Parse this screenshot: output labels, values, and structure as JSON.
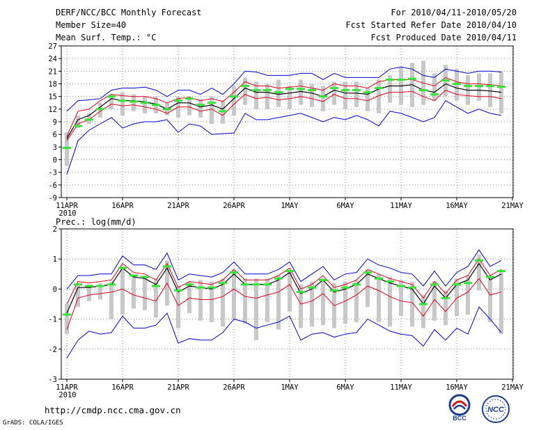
{
  "header": {
    "title": "DERF/NCC/BCC Monthly Forecast",
    "member_size": "Member Size=40",
    "variable": "Mean Surf. Temp.: °C",
    "period": "For 2010/04/11-2010/05/20",
    "started": "Fcst Started Refer Date 2010/04/10",
    "produced": "Fcst Produced Date 2010/04/11"
  },
  "footer": {
    "url": "http://cmdp.ncc.cma.gov.cn",
    "grads": "GrADS: COLA/IGES",
    "logo_bcc": "BCC",
    "logo_ncc": "NCC"
  },
  "colors": {
    "grid": "#8a8a8a",
    "box": "#c8c8c8",
    "mean": "#000000",
    "spread": "#e0001a",
    "range": "#0000d0",
    "obs": "#33e633"
  },
  "chart_data": [
    {
      "type": "line",
      "title": "Mean Surf. Temp.: °C",
      "xlabel": "",
      "ylabel": "°C",
      "ylim": [
        -9,
        27
      ],
      "yticks": [
        -9,
        -6,
        -3,
        0,
        3,
        6,
        9,
        12,
        15,
        18,
        21,
        24,
        27
      ],
      "xlim": [
        0,
        40
      ],
      "xticks": [
        {
          "day": 0,
          "label": "11APR"
        },
        {
          "day": 5,
          "label": "16APR"
        },
        {
          "day": 10,
          "label": "21APR"
        },
        {
          "day": 15,
          "label": "26APR"
        },
        {
          "day": 20,
          "label": "1MAY"
        },
        {
          "day": 25,
          "label": "6MAY"
        },
        {
          "day": 30,
          "label": "11MAY"
        },
        {
          "day": 35,
          "label": "16MAY"
        },
        {
          "day": 40,
          "label": "21MAY"
        }
      ],
      "year_label": "2010",
      "x": [
        0,
        1,
        2,
        3,
        4,
        5,
        6,
        7,
        8,
        9,
        10,
        11,
        12,
        13,
        14,
        15,
        16,
        17,
        18,
        19,
        20,
        21,
        22,
        23,
        24,
        25,
        26,
        27,
        28,
        29,
        30,
        31,
        32,
        33,
        34,
        35,
        36,
        37,
        38,
        39
      ],
      "series": [
        {
          "name": "ensemble mean",
          "values": [
            5.0,
            9.5,
            10.5,
            12.5,
            14.5,
            14.0,
            14.0,
            13.7,
            13.2,
            12.0,
            13.5,
            13.5,
            12.5,
            13.0,
            12.0,
            14.5,
            17.0,
            16.0,
            16.0,
            15.5,
            15.8,
            16.2,
            15.8,
            15.0,
            16.5,
            15.8,
            15.8,
            15.5,
            16.8,
            17.5,
            17.5,
            17.8,
            16.5,
            16.0,
            18.0,
            17.0,
            16.5,
            16.5,
            16.3,
            16.0
          ]
        },
        {
          "name": "mean plus spread",
          "values": [
            5.5,
            11.5,
            12.0,
            14.0,
            15.5,
            15.2,
            15.0,
            15.0,
            14.5,
            13.5,
            14.5,
            14.8,
            14.0,
            14.5,
            13.8,
            16.0,
            18.5,
            17.5,
            17.5,
            17.0,
            17.2,
            17.5,
            17.0,
            16.5,
            18.0,
            17.5,
            17.5,
            17.0,
            18.5,
            19.0,
            19.0,
            19.0,
            18.2,
            17.5,
            19.5,
            18.5,
            18.0,
            18.0,
            17.8,
            17.5
          ]
        },
        {
          "name": "mean minus spread",
          "values": [
            4.5,
            8.5,
            9.5,
            11.5,
            13.2,
            12.8,
            13.0,
            12.5,
            12.0,
            11.0,
            12.5,
            12.5,
            11.5,
            12.0,
            10.5,
            13.2,
            15.5,
            14.5,
            14.8,
            14.2,
            14.5,
            15.0,
            14.5,
            13.8,
            15.5,
            14.5,
            14.5,
            14.0,
            15.2,
            16.0,
            16.0,
            16.2,
            15.0,
            14.0,
            16.5,
            15.5,
            15.2,
            15.0,
            15.0,
            14.5
          ]
        },
        {
          "name": "ensemble max",
          "values": [
            11.5,
            14.0,
            14.2,
            14.5,
            16.5,
            17.0,
            17.0,
            17.2,
            16.5,
            15.0,
            16.5,
            16.5,
            15.5,
            17.0,
            15.5,
            18.0,
            21.0,
            20.8,
            20.0,
            20.0,
            20.0,
            20.5,
            20.5,
            19.0,
            20.5,
            19.5,
            19.5,
            19.5,
            19.5,
            21.5,
            22.0,
            21.5,
            20.0,
            19.5,
            21.5,
            21.0,
            20.5,
            21.0,
            21.0,
            20.8
          ]
        },
        {
          "name": "ensemble min",
          "values": [
            -3.5,
            4.5,
            7.0,
            8.5,
            10.0,
            7.5,
            8.5,
            9.0,
            9.0,
            9.5,
            6.5,
            8.5,
            8.0,
            6.0,
            6.2,
            6.3,
            11.0,
            9.5,
            9.5,
            10.0,
            10.5,
            11.0,
            10.0,
            9.0,
            10.0,
            9.5,
            10.5,
            9.5,
            8.0,
            11.5,
            11.0,
            10.0,
            9.0,
            10.0,
            14.0,
            12.5,
            11.0,
            12.0,
            11.0,
            10.5
          ]
        },
        {
          "name": "box top",
          "values": [
            6.5,
            10.5,
            11.0,
            13.5,
            15.5,
            16.0,
            15.5,
            15.0,
            15.0,
            13.5,
            15.0,
            15.0,
            14.5,
            15.0,
            14.0,
            17.5,
            19.5,
            18.5,
            18.0,
            19.0,
            17.5,
            19.0,
            18.0,
            17.5,
            18.5,
            18.5,
            18.5,
            17.0,
            19.0,
            20.0,
            22.0,
            23.0,
            23.5,
            20.5,
            22.5,
            21.5,
            20.0,
            20.5,
            20.5,
            21.0
          ]
        },
        {
          "name": "box bottom",
          "values": [
            -1.5,
            7.5,
            8.5,
            10.0,
            12.0,
            10.5,
            11.5,
            11.0,
            11.0,
            10.5,
            10.0,
            10.5,
            10.0,
            8.5,
            8.5,
            10.5,
            13.0,
            12.0,
            12.0,
            12.5,
            12.0,
            13.0,
            12.5,
            11.5,
            13.0,
            12.0,
            12.5,
            11.5,
            11.0,
            13.5,
            13.0,
            12.5,
            13.0,
            14.0,
            15.0,
            14.0,
            13.0,
            14.0,
            12.5,
            11.0
          ]
        },
        {
          "name": "observation (green markers)",
          "values": [
            2.8,
            8.0,
            9.5,
            12.0,
            15.0,
            14.0,
            13.8,
            13.5,
            13.0,
            12.0,
            14.0,
            14.5,
            13.0,
            13.5,
            11.5,
            15.0,
            17.5,
            16.5,
            16.5,
            16.0,
            16.8,
            16.8,
            16.5,
            15.0,
            17.0,
            16.5,
            16.5,
            16.0,
            17.0,
            19.0,
            19.0,
            19.2,
            16.5,
            15.5,
            18.8,
            18.0,
            17.5,
            17.5,
            17.5,
            17.3
          ]
        }
      ]
    },
    {
      "type": "line",
      "title": "Prec.: log(mm/d)",
      "xlabel": "",
      "ylabel": "log(mm/d)",
      "ylim": [
        -3,
        2
      ],
      "yticks": [
        -3,
        -2,
        -1,
        0,
        1,
        2
      ],
      "xlim": [
        0,
        40
      ],
      "xticks": [
        {
          "day": 0,
          "label": "11APR"
        },
        {
          "day": 5,
          "label": "16APR"
        },
        {
          "day": 10,
          "label": "21APR"
        },
        {
          "day": 15,
          "label": "26APR"
        },
        {
          "day": 20,
          "label": "1MAY"
        },
        {
          "day": 25,
          "label": "6MAY"
        },
        {
          "day": 30,
          "label": "11MAY"
        },
        {
          "day": 35,
          "label": "16MAY"
        },
        {
          "day": 40,
          "label": "21MAY"
        }
      ],
      "year_label": "2010",
      "x": [
        0,
        1,
        2,
        3,
        4,
        5,
        6,
        7,
        8,
        9,
        10,
        11,
        12,
        13,
        14,
        15,
        16,
        17,
        18,
        19,
        20,
        21,
        22,
        23,
        24,
        25,
        26,
        27,
        28,
        29,
        30,
        31,
        32,
        33,
        34,
        35,
        36,
        37,
        38,
        39
      ],
      "series": [
        {
          "name": "ensemble mean",
          "values": [
            -0.8,
            0.05,
            0.05,
            0.1,
            0.15,
            0.7,
            0.4,
            0.35,
            0.15,
            0.7,
            -0.1,
            0.1,
            0.05,
            0.0,
            0.15,
            0.5,
            0.15,
            0.15,
            0.15,
            0.3,
            0.55,
            -0.15,
            0.0,
            0.3,
            -0.1,
            0.0,
            0.15,
            0.5,
            0.35,
            0.2,
            0.1,
            0.0,
            -0.5,
            0.1,
            -0.3,
            0.15,
            0.3,
            0.85,
            0.3,
            0.5
          ]
        },
        {
          "name": "mean plus spread",
          "values": [
            -0.5,
            0.25,
            0.2,
            0.25,
            0.3,
            0.85,
            0.55,
            0.5,
            0.3,
            0.85,
            0.05,
            0.25,
            0.2,
            0.15,
            0.3,
            0.65,
            0.3,
            0.3,
            0.3,
            0.45,
            0.7,
            0.0,
            0.15,
            0.45,
            0.05,
            0.15,
            0.3,
            0.65,
            0.5,
            0.35,
            0.25,
            0.15,
            -0.3,
            0.25,
            -0.15,
            0.3,
            0.45,
            1.0,
            0.45,
            0.65
          ]
        },
        {
          "name": "mean minus spread",
          "values": [
            -1.35,
            -0.3,
            -0.2,
            -0.15,
            -0.1,
            0.0,
            -0.2,
            -0.3,
            -0.4,
            0.2,
            -0.55,
            -0.3,
            -0.35,
            -0.35,
            -0.25,
            0.0,
            -0.25,
            -0.3,
            -0.2,
            -0.1,
            0.15,
            -0.5,
            -0.4,
            -0.15,
            -0.55,
            -0.4,
            -0.2,
            0.1,
            -0.05,
            -0.25,
            -0.4,
            -0.45,
            -0.9,
            -0.35,
            -0.75,
            -0.3,
            -0.1,
            0.35,
            -0.2,
            -0.1
          ]
        },
        {
          "name": "ensemble max",
          "values": [
            0.0,
            0.45,
            0.45,
            0.5,
            0.5,
            1.1,
            0.8,
            0.8,
            0.65,
            1.2,
            0.3,
            0.5,
            0.45,
            0.4,
            0.55,
            0.9,
            0.5,
            0.5,
            0.5,
            0.65,
            0.9,
            0.25,
            0.5,
            0.75,
            0.3,
            0.5,
            0.55,
            1.0,
            0.8,
            0.7,
            0.55,
            0.5,
            0.1,
            0.6,
            0.1,
            0.55,
            0.75,
            1.3,
            0.75,
            0.95
          ]
        },
        {
          "name": "ensemble min",
          "values": [
            -2.3,
            -1.7,
            -1.4,
            -1.5,
            -1.45,
            -0.9,
            -1.3,
            -1.3,
            -1.2,
            -0.8,
            -1.8,
            -1.65,
            -1.7,
            -1.7,
            -1.45,
            -1.0,
            -1.1,
            -1.3,
            -1.2,
            -1.1,
            -0.9,
            -1.7,
            -1.5,
            -1.45,
            -1.6,
            -1.5,
            -1.45,
            -1.0,
            -1.2,
            -1.4,
            -1.5,
            -1.55,
            -1.9,
            -1.35,
            -1.7,
            -1.3,
            -1.5,
            -0.6,
            -1.0,
            -1.45
          ]
        },
        {
          "name": "box top",
          "values": [
            -0.5,
            0.2,
            0.15,
            0.2,
            0.25,
            0.75,
            0.45,
            0.45,
            0.35,
            0.95,
            0.1,
            0.25,
            0.3,
            0.25,
            0.35,
            0.65,
            0.35,
            0.35,
            0.35,
            0.45,
            0.6,
            0.15,
            0.25,
            0.35,
            0.2,
            0.25,
            0.3,
            0.65,
            0.5,
            0.4,
            0.3,
            0.25,
            -0.2,
            0.25,
            -0.05,
            0.35,
            0.45,
            1.15,
            0.45,
            0.6
          ]
        },
        {
          "name": "box bottom",
          "values": [
            -1.5,
            -0.6,
            -0.4,
            -0.35,
            -1.0,
            -0.85,
            -0.65,
            -0.7,
            -0.95,
            -0.55,
            -1.3,
            -0.8,
            -1.05,
            -1.1,
            -1.25,
            -1.0,
            -1.15,
            -1.7,
            -1.1,
            -1.35,
            -0.75,
            -1.3,
            -1.25,
            -1.2,
            -1.3,
            -1.15,
            -1.1,
            -0.6,
            -1.1,
            -1.25,
            -0.9,
            -1.25,
            -1.3,
            -1.05,
            -1.2,
            -0.9,
            -0.85,
            -0.05,
            -1.1,
            -1.5
          ]
        },
        {
          "name": "observation (green markers)",
          "values": [
            -0.85,
            0.15,
            0.1,
            0.1,
            0.15,
            0.7,
            0.45,
            0.4,
            0.1,
            0.75,
            -0.05,
            0.15,
            0.05,
            0.05,
            0.2,
            0.55,
            0.15,
            0.15,
            0.15,
            0.35,
            0.6,
            -0.1,
            0.05,
            0.3,
            -0.05,
            0.05,
            0.15,
            0.55,
            0.35,
            0.25,
            0.1,
            0.05,
            -0.5,
            0.15,
            -0.3,
            0.15,
            0.2,
            0.95,
            0.4,
            0.6
          ]
        }
      ]
    }
  ]
}
